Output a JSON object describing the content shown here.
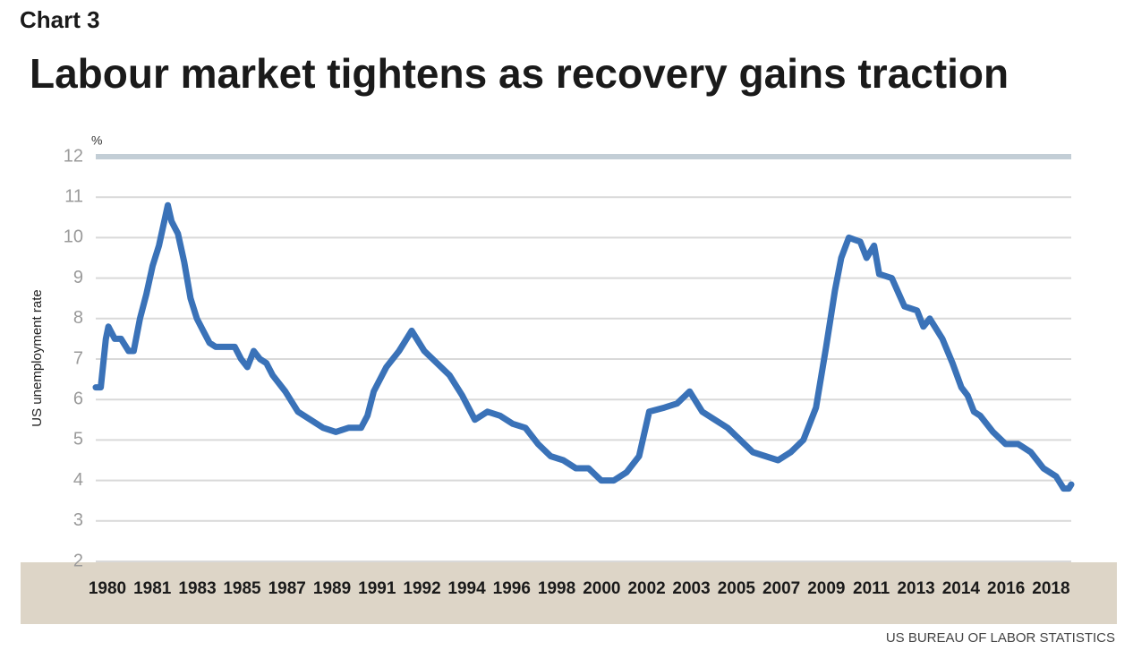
{
  "chart_data": {
    "type": "line",
    "kicker": "Chart 3",
    "title": "Labour market tightens as recovery gains traction",
    "unit": "%",
    "y_label": "US unemployment rate",
    "source": "US BUREAU OF LABOR STATISTICS",
    "color": "#3a72b8",
    "grid": true,
    "xlim": [
      1980,
      2018.6
    ],
    "ylim": [
      2,
      12
    ],
    "yticks": [
      2,
      3,
      4,
      5,
      6,
      7,
      8,
      9,
      10,
      11,
      12
    ],
    "xticks": [
      {
        "value": 1980.46,
        "label": "1980"
      },
      {
        "value": 1982.24,
        "label": "1981"
      },
      {
        "value": 1984.02,
        "label": "1983"
      },
      {
        "value": 1985.79,
        "label": "1985"
      },
      {
        "value": 1987.57,
        "label": "1987"
      },
      {
        "value": 1989.35,
        "label": "1989"
      },
      {
        "value": 1991.13,
        "label": "1991"
      },
      {
        "value": 1992.91,
        "label": "1992"
      },
      {
        "value": 1994.68,
        "label": "1994"
      },
      {
        "value": 1996.46,
        "label": "1996"
      },
      {
        "value": 1998.24,
        "label": "1998"
      },
      {
        "value": 2000.02,
        "label": "2000"
      },
      {
        "value": 2001.8,
        "label": "2002"
      },
      {
        "value": 2003.57,
        "label": "2003"
      },
      {
        "value": 2005.35,
        "label": "2005"
      },
      {
        "value": 2007.13,
        "label": "2007"
      },
      {
        "value": 2008.91,
        "label": "2009"
      },
      {
        "value": 2010.69,
        "label": "2011"
      },
      {
        "value": 2012.46,
        "label": "2013"
      },
      {
        "value": 2014.24,
        "label": "2014"
      },
      {
        "value": 2016.02,
        "label": "2016"
      },
      {
        "value": 2017.8,
        "label": "2018"
      }
    ],
    "series": [
      {
        "name": "US unemployment rate",
        "x": [
          1980.0,
          1980.2,
          1980.4,
          1980.5,
          1980.75,
          1981.0,
          1981.3,
          1981.5,
          1981.75,
          1982.0,
          1982.25,
          1982.5,
          1982.85,
          1983.0,
          1983.25,
          1983.5,
          1983.75,
          1984.0,
          1984.25,
          1984.5,
          1984.75,
          1985.0,
          1985.5,
          1985.75,
          1986.0,
          1986.25,
          1986.5,
          1986.75,
          1987.0,
          1987.5,
          1988.0,
          1988.5,
          1989.0,
          1989.5,
          1990.0,
          1990.5,
          1990.75,
          1991.0,
          1991.5,
          1992.0,
          1992.5,
          1993.0,
          1993.5,
          1994.0,
          1994.5,
          1995.0,
          1995.5,
          1996.0,
          1996.5,
          1997.0,
          1997.5,
          1998.0,
          1998.5,
          1999.0,
          1999.5,
          2000.0,
          2000.5,
          2001.0,
          2001.5,
          2001.9,
          2002.5,
          2003.0,
          2003.5,
          2004.0,
          2004.5,
          2005.0,
          2005.5,
          2006.0,
          2006.5,
          2007.0,
          2007.5,
          2008.0,
          2008.5,
          2008.9,
          2009.25,
          2009.5,
          2009.8,
          2010.25,
          2010.5,
          2010.8,
          2011.0,
          2011.5,
          2012.0,
          2012.5,
          2012.75,
          2013.0,
          2013.5,
          2013.9,
          2014.25,
          2014.5,
          2014.75,
          2015.0,
          2015.5,
          2016.0,
          2016.5,
          2017.0,
          2017.5,
          2018.0,
          2018.3,
          2018.5,
          2018.6
        ],
        "values": [
          6.3,
          6.3,
          7.5,
          7.8,
          7.5,
          7.5,
          7.2,
          7.2,
          8.0,
          8.6,
          9.3,
          9.8,
          10.8,
          10.4,
          10.1,
          9.4,
          8.5,
          8.0,
          7.7,
          7.4,
          7.3,
          7.3,
          7.3,
          7.0,
          6.8,
          7.2,
          7.0,
          6.9,
          6.6,
          6.2,
          5.7,
          5.5,
          5.3,
          5.2,
          5.3,
          5.3,
          5.6,
          6.2,
          6.8,
          7.2,
          7.7,
          7.2,
          6.9,
          6.6,
          6.1,
          5.5,
          5.7,
          5.6,
          5.4,
          5.3,
          4.9,
          4.6,
          4.5,
          4.3,
          4.3,
          4.0,
          4.0,
          4.2,
          4.6,
          5.7,
          5.8,
          5.9,
          6.2,
          5.7,
          5.5,
          5.3,
          5.0,
          4.7,
          4.6,
          4.5,
          4.7,
          5.0,
          5.8,
          7.3,
          8.7,
          9.5,
          10.0,
          9.9,
          9.5,
          9.8,
          9.1,
          9.0,
          8.3,
          8.2,
          7.8,
          8.0,
          7.5,
          6.9,
          6.3,
          6.1,
          5.7,
          5.6,
          5.2,
          4.9,
          4.9,
          4.7,
          4.3,
          4.1,
          3.8,
          3.8,
          3.9
        ]
      }
    ]
  }
}
